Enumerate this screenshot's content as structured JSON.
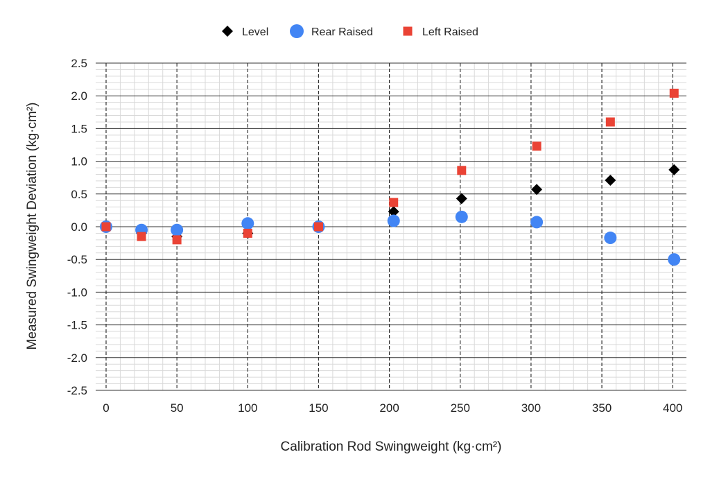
{
  "chart_data": {
    "type": "scatter",
    "title": "",
    "xlabel": "Calibration Rod Swingweight (kg·cm²)",
    "ylabel": "Measured Swingweight Deviation (kg·cm²)",
    "xlim": [
      0,
      410
    ],
    "ylim": [
      -2.5,
      2.5
    ],
    "x_ticks": [
      0,
      50,
      100,
      150,
      200,
      250,
      300,
      350,
      400
    ],
    "y_ticks": [
      2.5,
      2.0,
      1.5,
      1.0,
      0.5,
      0.0,
      -0.5,
      -1.0,
      -1.5,
      -2.0,
      -2.5
    ],
    "x_tick_labels": [
      "0",
      "50",
      "100",
      "150",
      "200",
      "250",
      "300",
      "350",
      "400"
    ],
    "y_tick_labels": [
      "2.5",
      "2.0",
      "1.5",
      "1.0",
      "0.5",
      "0.0",
      "-0.5",
      "-1.0",
      "-1.5",
      "-2.0",
      "-2.5"
    ],
    "grid": true,
    "legend_position": "top-center",
    "series": [
      {
        "name": "Level",
        "marker": "diamond",
        "color": "#000000",
        "points": [
          [
            0,
            0.0
          ],
          [
            25,
            -0.1
          ],
          [
            50,
            -0.15
          ],
          [
            100,
            -0.1
          ],
          [
            150,
            0.0
          ],
          [
            203,
            0.23
          ],
          [
            251,
            0.43
          ],
          [
            304,
            0.57
          ],
          [
            356,
            0.71
          ],
          [
            401,
            0.87
          ]
        ]
      },
      {
        "name": "Rear Raised",
        "marker": "circle",
        "color": "#4285F4",
        "points": [
          [
            0,
            0.0
          ],
          [
            25,
            -0.05
          ],
          [
            50,
            -0.05
          ],
          [
            100,
            0.05
          ],
          [
            150,
            0.0
          ],
          [
            203,
            0.09
          ],
          [
            251,
            0.15
          ],
          [
            304,
            0.07
          ],
          [
            356,
            -0.17
          ],
          [
            401,
            -0.5
          ]
        ]
      },
      {
        "name": "Left Raised",
        "marker": "square",
        "color": "#EA4335",
        "points": [
          [
            0,
            0.0
          ],
          [
            25,
            -0.15
          ],
          [
            50,
            -0.2
          ],
          [
            100,
            -0.1
          ],
          [
            150,
            0.0
          ],
          [
            203,
            0.37
          ],
          [
            251,
            0.86
          ],
          [
            304,
            1.23
          ],
          [
            356,
            1.6
          ],
          [
            401,
            2.04
          ]
        ]
      }
    ]
  }
}
